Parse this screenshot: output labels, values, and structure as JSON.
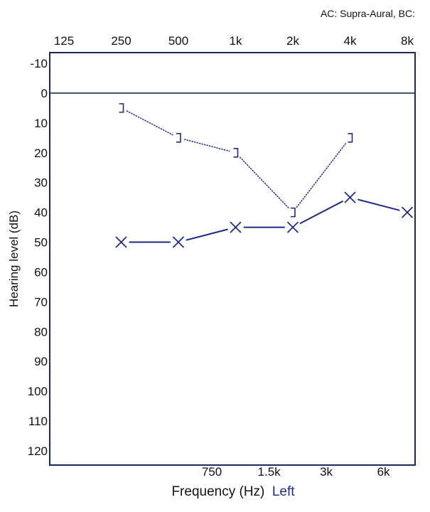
{
  "header": {
    "transducer_note": "AC: Supra-Aural, BC:"
  },
  "colors": {
    "ac_series": "#1f2a8c",
    "bc_series": "#1f2a8c",
    "ear_label": "#1f2a8c",
    "frame": "#1a2a5a",
    "zero_line": "#1a2a5a",
    "text": "#111111"
  },
  "chart_data": {
    "type": "line",
    "title": "",
    "xlabel": "Frequency (Hz)",
    "xlabel_ear": "Left",
    "ylabel": "Hearing level (dB)",
    "x_scale": "log",
    "y_inverted": true,
    "ylim": [
      -15,
      125
    ],
    "grid": false,
    "legend": "none",
    "x_top_ticks": [
      {
        "value": 125,
        "label": "125"
      },
      {
        "value": 250,
        "label": "250"
      },
      {
        "value": 500,
        "label": "500"
      },
      {
        "value": 1000,
        "label": "1k"
      },
      {
        "value": 2000,
        "label": "2k"
      },
      {
        "value": 4000,
        "label": "4k"
      },
      {
        "value": 8000,
        "label": "8k"
      }
    ],
    "x_bottom_ticks": [
      {
        "value": 750,
        "label": "750"
      },
      {
        "value": 1500,
        "label": "1.5k"
      },
      {
        "value": 3000,
        "label": "3k"
      },
      {
        "value": 6000,
        "label": "6k"
      }
    ],
    "y_ticks": [
      -10,
      0,
      10,
      20,
      30,
      40,
      50,
      60,
      70,
      80,
      90,
      100,
      110,
      120
    ],
    "reference_line": 0,
    "series": [
      {
        "key": "air_conduction",
        "symbol": "x",
        "line": "solid",
        "points": [
          {
            "x": 250,
            "y": 50
          },
          {
            "x": 500,
            "y": 50
          },
          {
            "x": 1000,
            "y": 45
          },
          {
            "x": 2000,
            "y": 45
          },
          {
            "x": 4000,
            "y": 35
          },
          {
            "x": 8000,
            "y": 40
          }
        ]
      },
      {
        "key": "bone_conduction",
        "symbol": "bracket-right",
        "line": "dotted",
        "points": [
          {
            "x": 250,
            "y": 5
          },
          {
            "x": 500,
            "y": 15
          },
          {
            "x": 1000,
            "y": 20
          },
          {
            "x": 2000,
            "y": 40
          },
          {
            "x": 4000,
            "y": 15
          }
        ]
      }
    ]
  }
}
